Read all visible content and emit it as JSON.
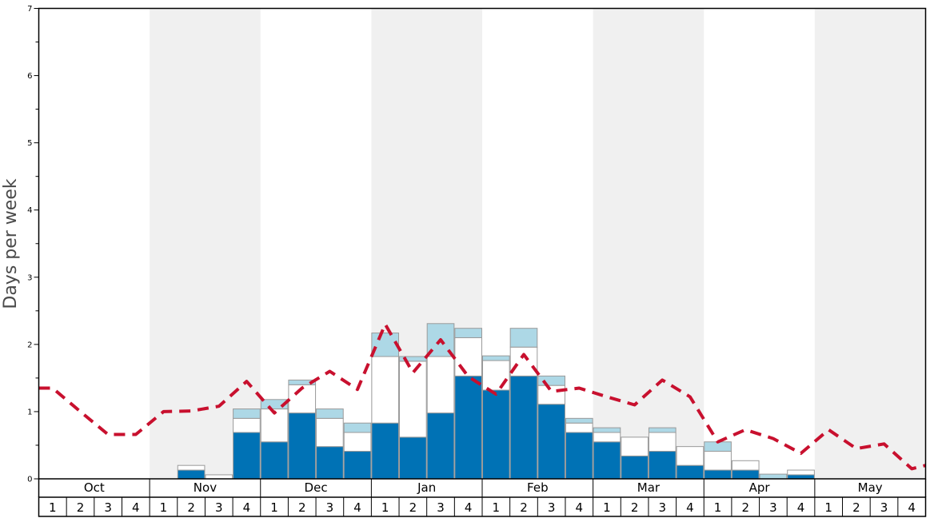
{
  "chart_data": {
    "type": "bar",
    "ylabel": "Days per week",
    "ylim": [
      0,
      7
    ],
    "y_major_ticks": [
      "0",
      "1",
      "2",
      "3",
      "4",
      "5",
      "6",
      "7"
    ],
    "months": [
      "Oct",
      "Nov",
      "Dec",
      "Jan",
      "Feb",
      "Mar",
      "Apr",
      "May"
    ],
    "weeks": [
      "1",
      "2",
      "3",
      "4"
    ],
    "shaded_months": [
      "Nov",
      "Jan",
      "Mar",
      "May"
    ],
    "grid": false,
    "legend": "none",
    "series": [
      {
        "key": "dark",
        "values": [
          0,
          0,
          0,
          0,
          0,
          0.13,
          0,
          0.69,
          0.55,
          0.98,
          0.48,
          0.41,
          0.83,
          0.62,
          0.98,
          1.53,
          1.32,
          1.53,
          1.11,
          0.69,
          0.55,
          0.34,
          0.41,
          0.2,
          0.13,
          0.13,
          0,
          0.06,
          0,
          0,
          0,
          0
        ],
        "color": "#0072b5"
      },
      {
        "key": "white",
        "values": [
          0,
          0,
          0,
          0,
          0,
          0.07,
          0.06,
          0.21,
          0.49,
          0.42,
          0.42,
          0.28,
          0.99,
          1.13,
          0.84,
          0.57,
          0.44,
          0.43,
          0.28,
          0.14,
          0.14,
          0.28,
          0.28,
          0.28,
          0.28,
          0.14,
          0,
          0.07,
          0,
          0,
          0,
          0
        ],
        "color": "#ffffff"
      },
      {
        "key": "light",
        "values": [
          0,
          0,
          0,
          0,
          0,
          0,
          0,
          0.14,
          0.14,
          0.07,
          0.14,
          0.14,
          0.35,
          0.07,
          0.49,
          0.14,
          0.07,
          0.28,
          0.14,
          0.07,
          0.07,
          0,
          0.07,
          0,
          0.14,
          0,
          0.07,
          0,
          0,
          0,
          0,
          0
        ],
        "color": "#add8e6"
      }
    ],
    "line": {
      "key": "dashed-red",
      "color": "#c8102e",
      "values": [
        1.35,
        1.0,
        0.66,
        0.66,
        1.0,
        1.01,
        1.08,
        1.45,
        0.98,
        1.35,
        1.6,
        1.33,
        2.3,
        1.58,
        2.07,
        1.52,
        1.26,
        1.85,
        1.3,
        1.35,
        1.22,
        1.1,
        1.47,
        1.22,
        0.55,
        0.73,
        0.6,
        0.38,
        0.73,
        0.45,
        0.52,
        0.15
      ]
    }
  }
}
